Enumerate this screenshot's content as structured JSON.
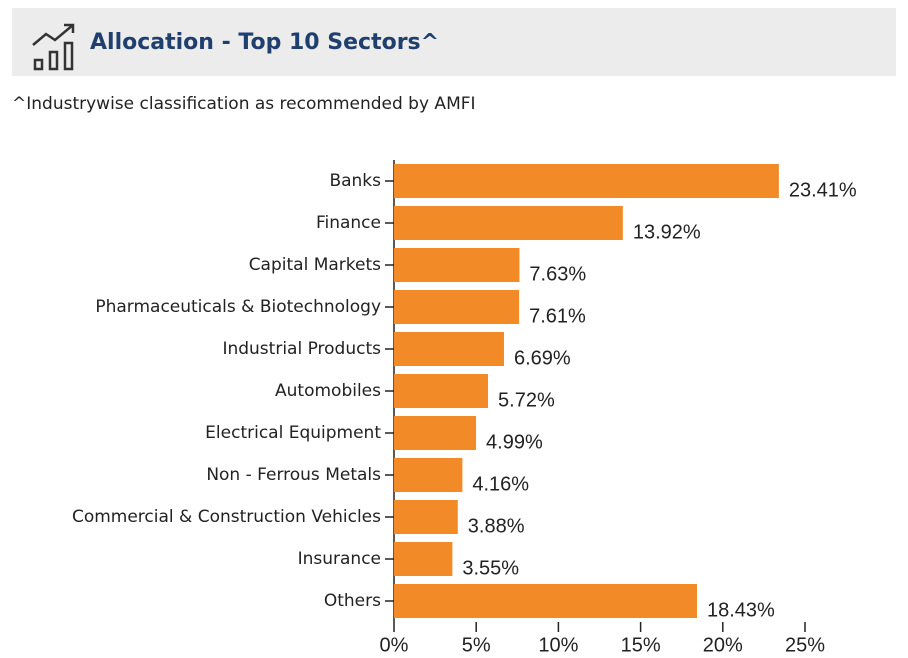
{
  "header": {
    "title": "Allocation - Top 10 Sectors^"
  },
  "subtitle": "^Industrywise classification as recommended by AMFI",
  "chart_data": {
    "type": "bar",
    "orientation": "horizontal",
    "color": "#f28a27",
    "categories": [
      "Banks",
      "Finance",
      "Capital Markets",
      "Pharmaceuticals & Biotechnology",
      "Industrial Products",
      "Automobiles",
      "Electrical Equipment",
      "Non - Ferrous Metals",
      "Commercial & Construction Vehicles",
      "Insurance",
      "Others"
    ],
    "values": [
      23.41,
      13.92,
      7.63,
      7.61,
      6.69,
      5.72,
      4.99,
      4.16,
      3.88,
      3.55,
      18.43
    ],
    "value_labels": [
      "23.41%",
      "13.92%",
      "7.63%",
      "7.61%",
      "6.69%",
      "5.72%",
      "4.99%",
      "4.16%",
      "3.88%",
      "3.55%",
      "18.43%"
    ],
    "xlim": [
      0,
      25
    ],
    "xticks": [
      {
        "value": 0,
        "label": "0%"
      },
      {
        "value": 5,
        "label": "5%"
      },
      {
        "value": 10,
        "label": "10%"
      },
      {
        "value": 15,
        "label": "15%"
      },
      {
        "value": 20,
        "label": "20%"
      },
      {
        "value": 25,
        "label": "25%"
      }
    ]
  }
}
